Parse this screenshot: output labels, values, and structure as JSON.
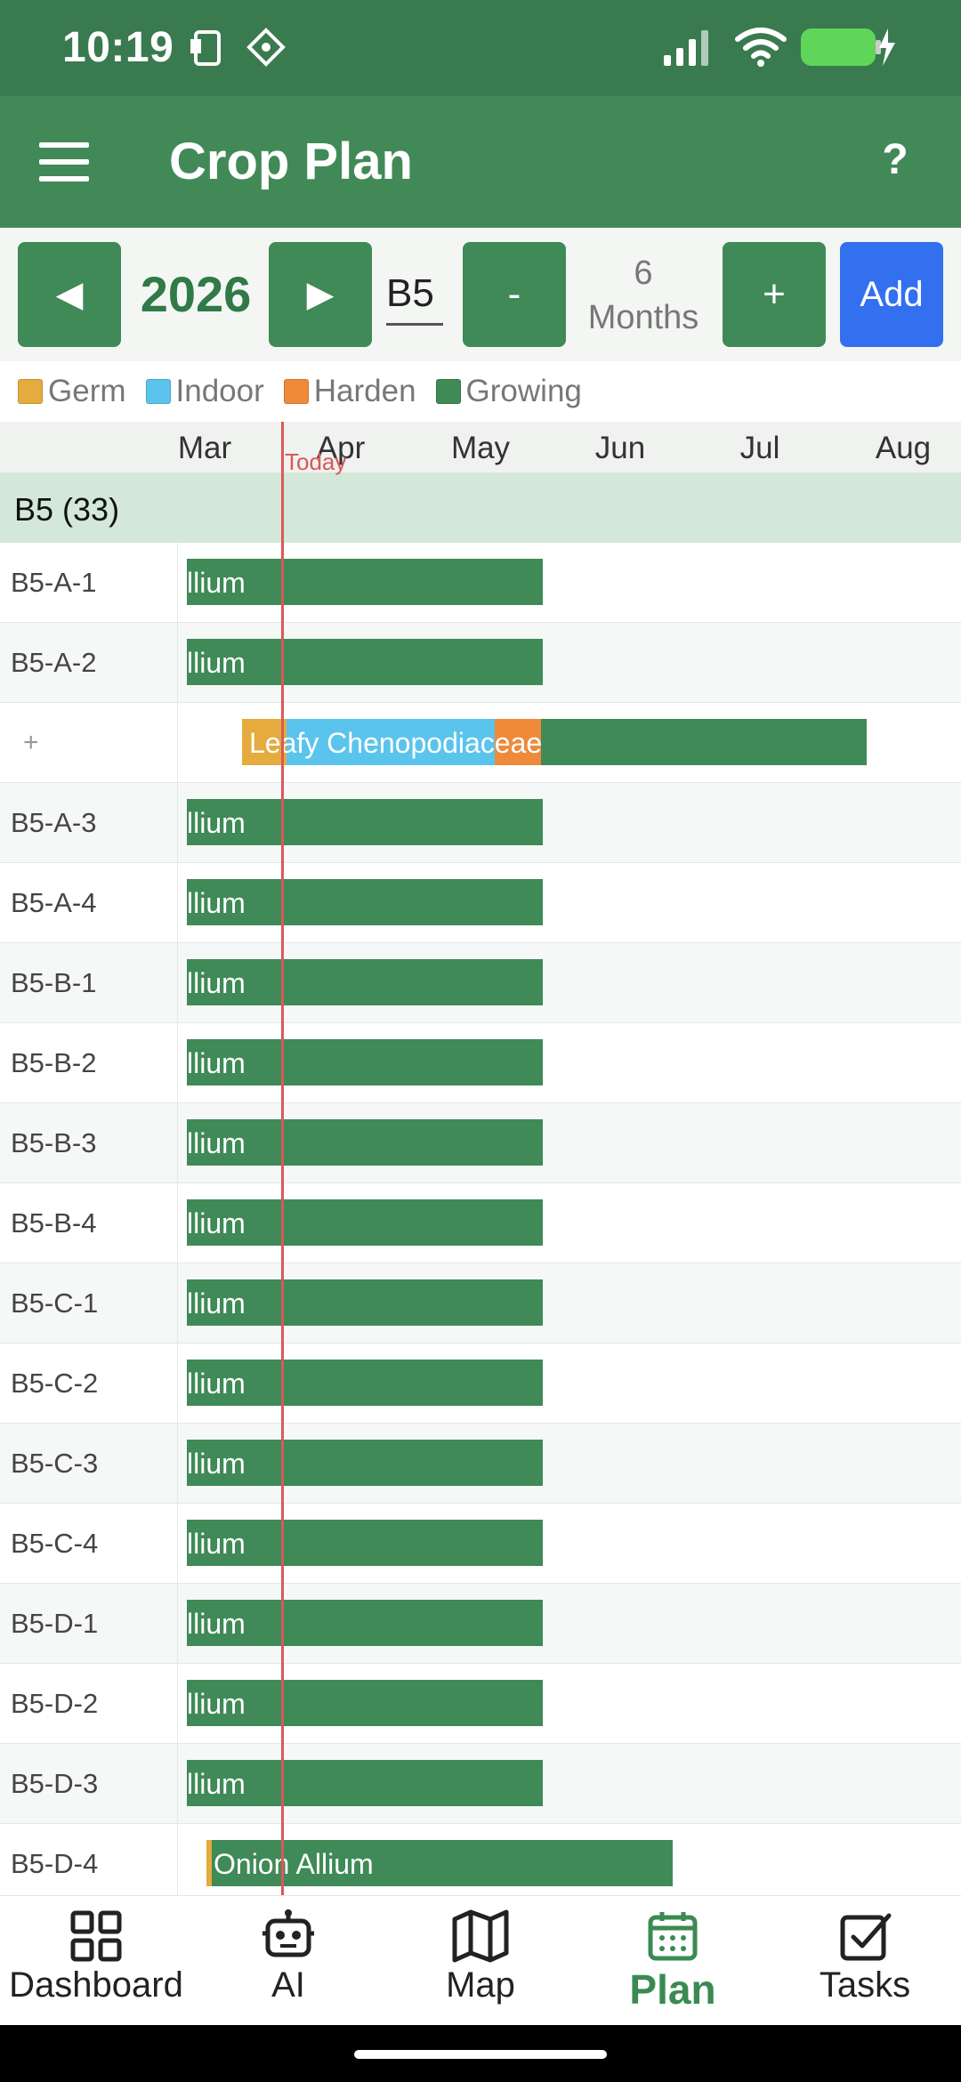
{
  "status": {
    "time": "10:19"
  },
  "appbar": {
    "title": "Crop Plan",
    "help": "?"
  },
  "controls": {
    "prev": "◀",
    "year": "2026",
    "next": "▶",
    "bed_value": "B5",
    "minus": "-",
    "months_count": "6",
    "months_unit": "Months",
    "plus": "+",
    "add": "Add"
  },
  "legend": [
    {
      "label": "Germ",
      "color": "#e5ab3e"
    },
    {
      "label": "Indoor",
      "color": "#5bc4ec"
    },
    {
      "label": "Harden",
      "color": "#ee8a3a"
    },
    {
      "label": "Growing",
      "color": "#3f8a57"
    }
  ],
  "months": [
    "Mar",
    "Apr",
    "May",
    "Jun",
    "Jul",
    "Aug"
  ],
  "today_label": "Today",
  "group": {
    "label": "B5 (33)"
  },
  "rows": [
    {
      "label": "B5-A-1",
      "crop": "llium"
    },
    {
      "label": "B5-A-2",
      "crop": "llium"
    },
    {
      "label": "+",
      "crop": "Leafy Chenopodiaceae"
    },
    {
      "label": "B5-A-3",
      "crop": "llium"
    },
    {
      "label": "B5-A-4",
      "crop": "llium"
    },
    {
      "label": "B5-B-1",
      "crop": "llium"
    },
    {
      "label": "B5-B-2",
      "crop": "llium"
    },
    {
      "label": "B5-B-3",
      "crop": "llium"
    },
    {
      "label": "B5-B-4",
      "crop": "llium"
    },
    {
      "label": "B5-C-1",
      "crop": "llium"
    },
    {
      "label": "B5-C-2",
      "crop": "llium"
    },
    {
      "label": "B5-C-3",
      "crop": "llium"
    },
    {
      "label": "B5-C-4",
      "crop": "llium"
    },
    {
      "label": "B5-D-1",
      "crop": "llium"
    },
    {
      "label": "B5-D-2",
      "crop": "llium"
    },
    {
      "label": "B5-D-3",
      "crop": "llium"
    },
    {
      "label": "B5-D-4",
      "crop": "Onion Allium"
    }
  ],
  "nav": [
    {
      "label": "Dashboard",
      "icon": "grid-icon"
    },
    {
      "label": "AI",
      "icon": "robot-icon"
    },
    {
      "label": "Map",
      "icon": "map-icon"
    },
    {
      "label": "Plan",
      "icon": "calendar-icon",
      "active": true
    },
    {
      "label": "Tasks",
      "icon": "checkbox-icon"
    }
  ]
}
